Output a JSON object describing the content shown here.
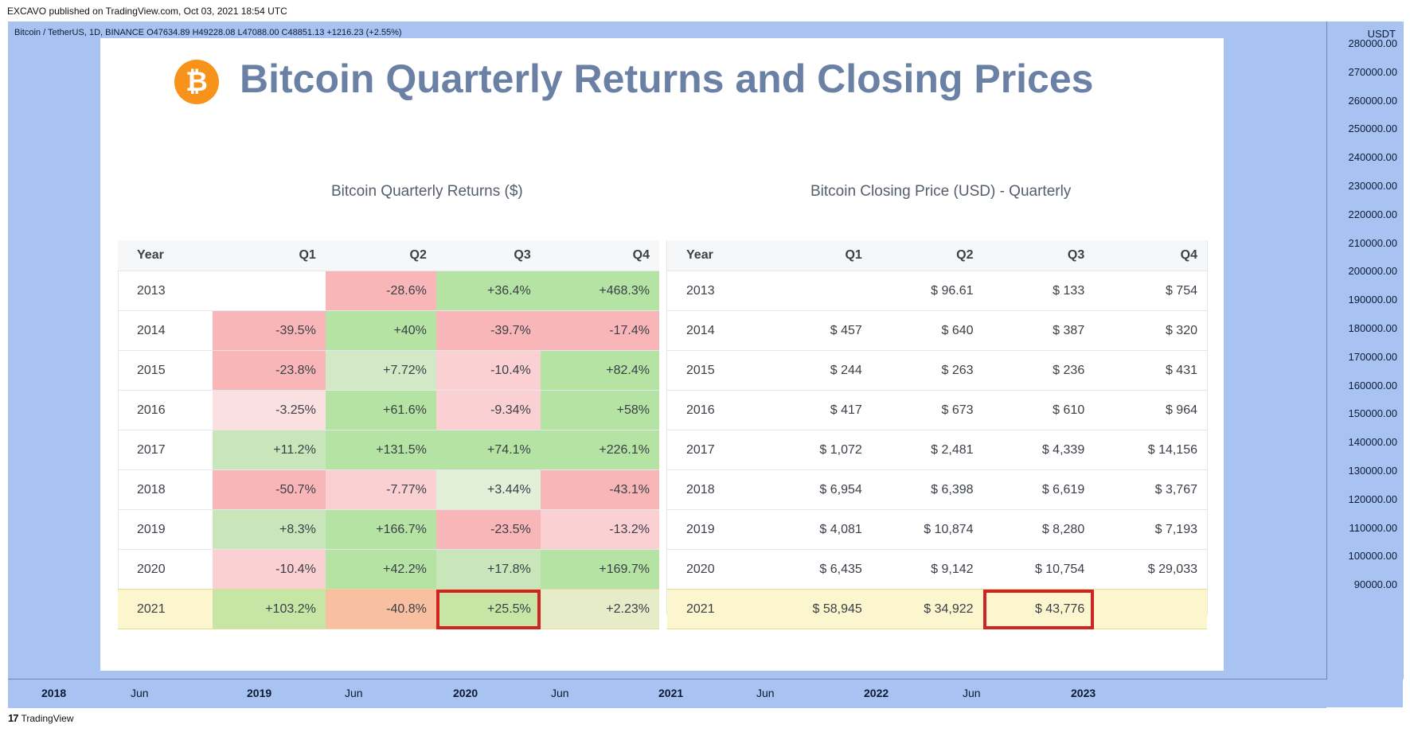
{
  "published": "EXCAVO published on TradingView.com, Oct 03, 2021 18:54 UTC",
  "symbol_info": "Bitcoin / TetherUS, 1D, BINANCE  O47634.89  H49228.08  L47088.00  C48851.13  +1216.23 (+2.55%)",
  "price_scale": {
    "unit": "USDT",
    "ticks": [
      "280000.00",
      "270000.00",
      "260000.00",
      "250000.00",
      "240000.00",
      "230000.00",
      "220000.00",
      "210000.00",
      "200000.00",
      "190000.00",
      "180000.00",
      "170000.00",
      "160000.00",
      "150000.00",
      "140000.00",
      "130000.00",
      "120000.00",
      "110000.00",
      "100000.00",
      "90000.00"
    ]
  },
  "time_axis": [
    {
      "label": "2018",
      "bold": true
    },
    {
      "label": "Jun",
      "bold": false
    },
    {
      "label": "2019",
      "bold": true
    },
    {
      "label": "Jun",
      "bold": false
    },
    {
      "label": "2020",
      "bold": true
    },
    {
      "label": "Jun",
      "bold": false
    },
    {
      "label": "2021",
      "bold": true
    },
    {
      "label": "Jun",
      "bold": false
    },
    {
      "label": "2022",
      "bold": true
    },
    {
      "label": "Jun",
      "bold": false
    },
    {
      "label": "2023",
      "bold": true
    }
  ],
  "footer": {
    "logo": "17",
    "brand": "TradingView"
  },
  "infographic": {
    "logo_glyph": "₿",
    "title": "Bitcoin Quarterly Returns and Closing Prices",
    "returns_table": {
      "subtitle": "Bitcoin Quarterly Returns ($)",
      "headers": [
        "Year",
        "Q1",
        "Q2",
        "Q3",
        "Q4"
      ],
      "rows": [
        {
          "year": "2013",
          "cells": [
            "",
            "-28.6%",
            "+36.4%",
            "+468.3%"
          ],
          "colors": [
            "#ffffff",
            "#f9b6b8",
            "#b5e3a3",
            "#b5e3a3"
          ]
        },
        {
          "year": "2014",
          "cells": [
            "-39.5%",
            "+40%",
            "-39.7%",
            "-17.4%"
          ],
          "colors": [
            "#f9b6b8",
            "#b5e3a3",
            "#f9b6b8",
            "#f9b6b8"
          ]
        },
        {
          "year": "2015",
          "cells": [
            "-23.8%",
            "+7.72%",
            "-10.4%",
            "+82.4%"
          ],
          "colors": [
            "#f9b6b8",
            "#d3e8c7",
            "#fbd0d2",
            "#b5e3a3"
          ]
        },
        {
          "year": "2016",
          "cells": [
            "-3.25%",
            "+61.6%",
            "-9.34%",
            "+58%"
          ],
          "colors": [
            "#fbe0e1",
            "#b5e3a3",
            "#fbd0d2",
            "#b5e3a3"
          ]
        },
        {
          "year": "2017",
          "cells": [
            "+11.2%",
            "+131.5%",
            "+74.1%",
            "+226.1%"
          ],
          "colors": [
            "#c9e6ba",
            "#b5e3a3",
            "#b5e3a3",
            "#b5e3a3"
          ]
        },
        {
          "year": "2018",
          "cells": [
            "-50.7%",
            "-7.77%",
            "+3.44%",
            "-43.1%"
          ],
          "colors": [
            "#f9b6b8",
            "#fbd0d2",
            "#e2efd9",
            "#f9b6b8"
          ]
        },
        {
          "year": "2019",
          "cells": [
            "+8.3%",
            "+166.7%",
            "-23.5%",
            "-13.2%"
          ],
          "colors": [
            "#c9e6ba",
            "#b5e3a3",
            "#f9b6b8",
            "#fbd0d2"
          ]
        },
        {
          "year": "2020",
          "cells": [
            "-10.4%",
            "+42.2%",
            "+17.8%",
            "+169.7%"
          ],
          "colors": [
            "#fbd0d2",
            "#b5e3a3",
            "#c9e6ba",
            "#b5e3a3"
          ]
        }
      ],
      "highlight_row": {
        "year": "2021",
        "cells": [
          "+103.2%",
          "-40.8%",
          "+25.5%",
          "+2.23%"
        ],
        "colors": [
          "#c7e5a4",
          "#f8bfa0",
          "#c7e5a4",
          "#e6ecc8"
        ],
        "boxed_index": 2
      }
    },
    "prices_table": {
      "subtitle": "Bitcoin Closing Price (USD) - Quarterly",
      "headers": [
        "Year",
        "Q1",
        "Q2",
        "Q3",
        "Q4"
      ],
      "rows": [
        {
          "year": "2013",
          "cells": [
            "",
            "$ 96.61",
            "$ 133",
            "$ 754"
          ]
        },
        {
          "year": "2014",
          "cells": [
            "$ 457",
            "$ 640",
            "$ 387",
            "$ 320"
          ]
        },
        {
          "year": "2015",
          "cells": [
            "$ 244",
            "$ 263",
            "$ 236",
            "$ 431"
          ]
        },
        {
          "year": "2016",
          "cells": [
            "$ 417",
            "$ 673",
            "$ 610",
            "$ 964"
          ]
        },
        {
          "year": "2017",
          "cells": [
            "$ 1,072",
            "$ 2,481",
            "$ 4,339",
            "$ 14,156"
          ]
        },
        {
          "year": "2018",
          "cells": [
            "$ 6,954",
            "$ 6,398",
            "$ 6,619",
            "$ 3,767"
          ]
        },
        {
          "year": "2019",
          "cells": [
            "$ 4,081",
            "$ 10,874",
            "$ 8,280",
            "$ 7,193"
          ]
        },
        {
          "year": "2020",
          "cells": [
            "$ 6,435",
            "$ 9,142",
            "$ 10,754",
            "$ 29,033"
          ]
        }
      ],
      "highlight_row": {
        "year": "2021",
        "cells": [
          "$ 58,945",
          "$ 34,922",
          "$ 43,776",
          ""
        ],
        "boxed_index": 2
      }
    }
  }
}
